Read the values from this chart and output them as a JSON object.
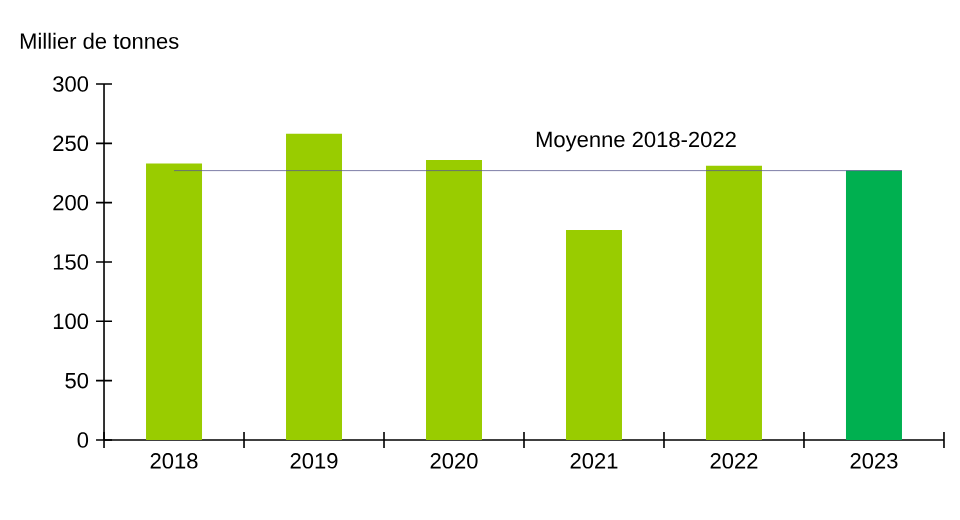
{
  "chart_data": {
    "type": "bar",
    "ylabel": "Millier de tonnes",
    "categories": [
      "2018",
      "2019",
      "2020",
      "2021",
      "2022",
      "2023"
    ],
    "values": [
      233,
      258,
      236,
      177,
      231,
      227
    ],
    "colors": [
      "#99cc00",
      "#99cc00",
      "#99cc00",
      "#99cc00",
      "#99cc00",
      "#00b050"
    ],
    "ylim": [
      0,
      300
    ],
    "yticks": [
      0,
      50,
      100,
      150,
      200,
      250,
      300
    ],
    "ref_lines": [
      {
        "axis": "y",
        "value": 227,
        "label": "Moyenne 2018-2022",
        "color": "#5b5b8f"
      }
    ],
    "grid": false
  }
}
